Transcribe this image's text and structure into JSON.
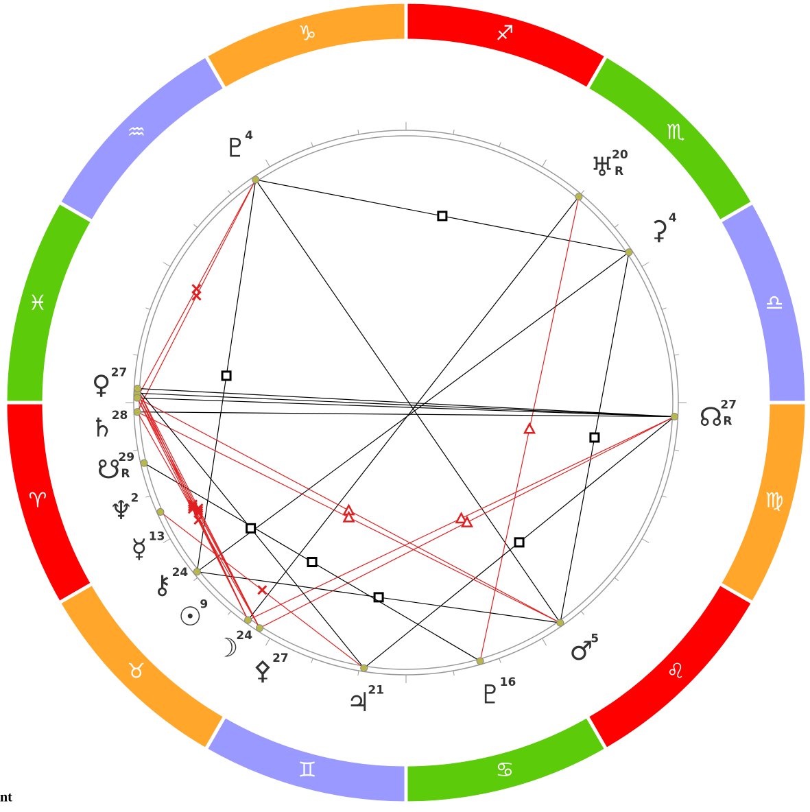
{
  "zodiac": {
    "signs": [
      {
        "glyph": "♈",
        "color": "#ff0000"
      },
      {
        "glyph": "♉",
        "color": "#ffa62b"
      },
      {
        "glyph": "♊",
        "color": "#9999ff"
      },
      {
        "glyph": "♋",
        "color": "#5ccb0a"
      },
      {
        "glyph": "♌",
        "color": "#ff0000"
      },
      {
        "glyph": "♍",
        "color": "#ffa62b"
      },
      {
        "glyph": "♎",
        "color": "#9999ff"
      },
      {
        "glyph": "♏",
        "color": "#5ccb0a"
      },
      {
        "glyph": "♐",
        "color": "#ff0000"
      },
      {
        "glyph": "♑",
        "color": "#ffa62b"
      },
      {
        "glyph": "♒",
        "color": "#9999ff"
      },
      {
        "glyph": "♓",
        "color": "#5ccb0a"
      }
    ]
  },
  "planets": [
    {
      "glyph": "♇",
      "degree": 4,
      "longitude": 304
    },
    {
      "glyph": "♅",
      "degree": 20,
      "retro": "R",
      "longitude": 230
    },
    {
      "glyph": "⚳",
      "degree": 4,
      "longitude": 214
    },
    {
      "glyph": "☊",
      "degree": 27,
      "retro": "R",
      "longitude": 177
    },
    {
      "glyph": "♂",
      "degree": 5,
      "longitude": 125
    },
    {
      "glyph": "♇",
      "degree": 16,
      "longitude": 106
    },
    {
      "glyph": "♃",
      "degree": 21,
      "longitude": 81
    },
    {
      "glyph": "☽",
      "degree": 24,
      "longitude": 54
    },
    {
      "glyph": "⚴",
      "degree": 27,
      "longitude": 57
    },
    {
      "glyph": "☉",
      "degree": 9,
      "longitude": 39
    },
    {
      "glyph": "⚷",
      "degree": 24,
      "longitude": 24
    },
    {
      "glyph": "☿",
      "degree": 13,
      "longitude": 13
    },
    {
      "glyph": "♄",
      "degree": 28,
      "longitude": 358
    },
    {
      "glyph": "♀",
      "degree": 27,
      "longitude": 357
    },
    {
      "glyph": "☋",
      "degree": 29,
      "retro": "R",
      "longitude": 359
    },
    {
      "glyph": "♆",
      "degree": 2,
      "longitude": 2
    }
  ],
  "footer_fragment": "nt"
}
